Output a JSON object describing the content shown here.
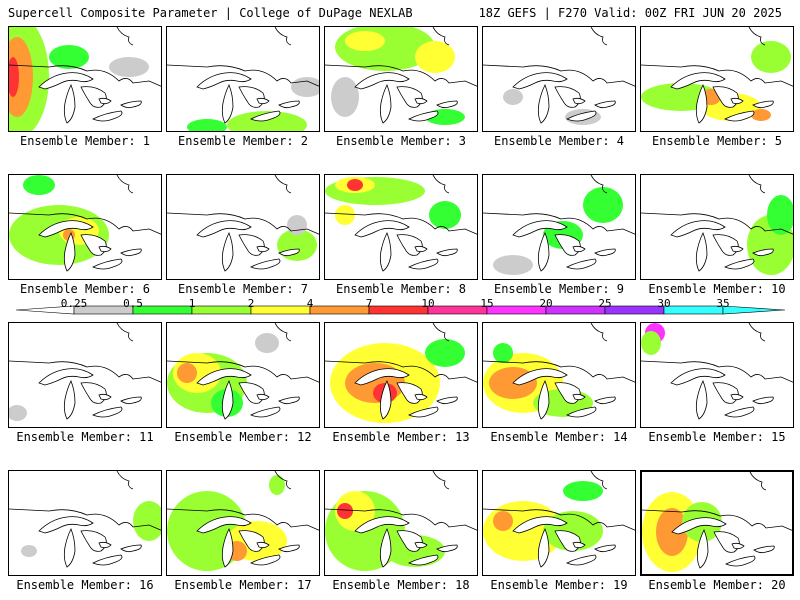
{
  "header": {
    "title": "Supercell Composite Parameter | College of DuPage NEXLAB",
    "run": "18Z GEFS | F270 Valid: 00Z FRI JUN 20 2025"
  },
  "colors": {
    "c1": "#cccccc",
    "c2": "#33ff33",
    "c3": "#99ff33",
    "c4": "#ffff33",
    "c5": "#ff9933",
    "c6": "#ff3333",
    "c7": "#ff3399",
    "c8": "#ff33ff",
    "c9": "#cc33ff",
    "c10": "#9933ff",
    "c11": "#33ffff"
  },
  "colorbar": {
    "ticks": [
      "0.25",
      "0.5",
      "1",
      "2",
      "4",
      "7",
      "10",
      "15",
      "20",
      "25",
      "30",
      "35"
    ]
  },
  "members": [
    {
      "label": "Ensemble Member: 1"
    },
    {
      "label": "Ensemble Member: 2"
    },
    {
      "label": "Ensemble Member: 3"
    },
    {
      "label": "Ensemble Member: 4"
    },
    {
      "label": "Ensemble Member: 5"
    },
    {
      "label": "Ensemble Member: 6"
    },
    {
      "label": "Ensemble Member: 7"
    },
    {
      "label": "Ensemble Member: 8"
    },
    {
      "label": "Ensemble Member: 9"
    },
    {
      "label": "Ensemble Member: 10"
    },
    {
      "label": "Ensemble Member: 11"
    },
    {
      "label": "Ensemble Member: 12"
    },
    {
      "label": "Ensemble Member: 13"
    },
    {
      "label": "Ensemble Member: 14"
    },
    {
      "label": "Ensemble Member: 15"
    },
    {
      "label": "Ensemble Member: 16"
    },
    {
      "label": "Ensemble Member: 17"
    },
    {
      "label": "Ensemble Member: 18"
    },
    {
      "label": "Ensemble Member: 19"
    },
    {
      "label": "Ensemble Member: 20"
    }
  ]
}
